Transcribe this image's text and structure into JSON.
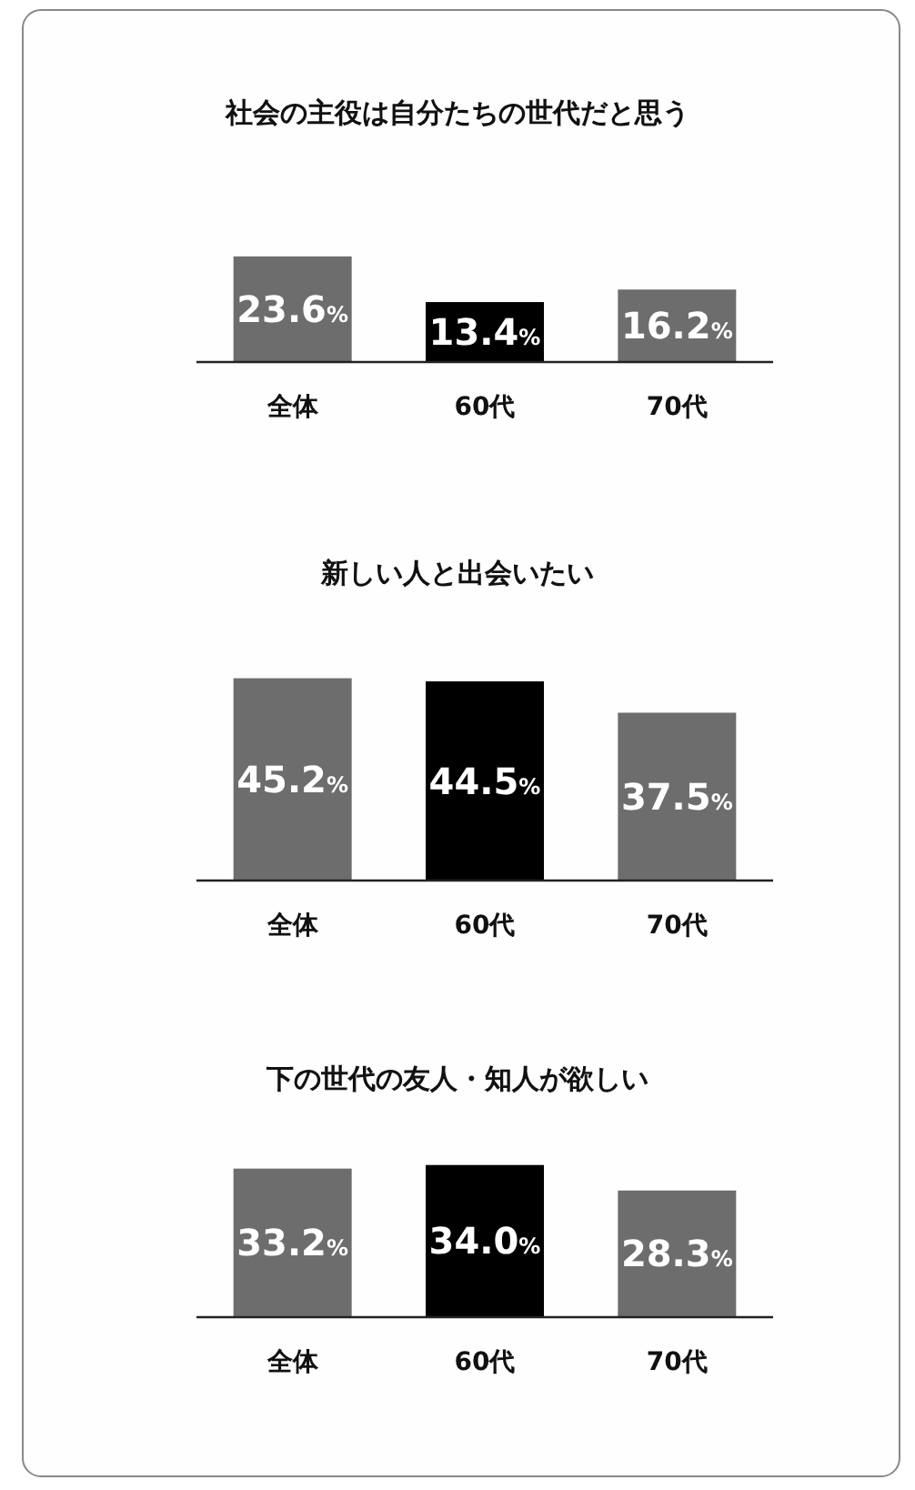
{
  "chart_data": [
    {
      "type": "bar",
      "title": "社会の主役は自分たちの世代だと思う",
      "categories": [
        "全体",
        "60代",
        "70代"
      ],
      "values": [
        23.6,
        13.4,
        16.2
      ],
      "colors": [
        "#6d6d6d",
        "#000000",
        "#6d6d6d"
      ],
      "value_labels": [
        "23.6%",
        "13.4%",
        "16.2%"
      ]
    },
    {
      "type": "bar",
      "title": "新しい人と出会いたい",
      "categories": [
        "全体",
        "60代",
        "70代"
      ],
      "values": [
        45.2,
        44.5,
        37.5
      ],
      "colors": [
        "#6d6d6d",
        "#000000",
        "#6d6d6d"
      ],
      "value_labels": [
        "45.2%",
        "44.5%",
        "37.5%"
      ]
    },
    {
      "type": "bar",
      "title": "下の世代の友人・知人が欲しい",
      "categories": [
        "全体",
        "60代",
        "70代"
      ],
      "values": [
        33.2,
        34.0,
        28.3
      ],
      "colors": [
        "#6d6d6d",
        "#000000",
        "#6d6d6d"
      ],
      "value_labels": [
        "33.2%",
        "34.0%",
        "28.3%"
      ]
    }
  ]
}
